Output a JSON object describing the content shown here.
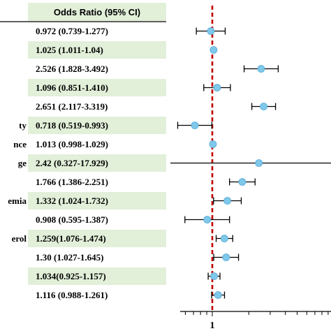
{
  "chart_data": {
    "type": "forest",
    "table_header": "Odds Ratio (95% CI)",
    "reference_line": 1,
    "x_tick_labels": [
      "1"
    ],
    "x_scale": "log",
    "row_colors": [
      "#ffffff",
      "#e2efd9"
    ],
    "marker_color": "#7ec8ea",
    "reference_line_color": "#c00000",
    "rows": [
      {
        "label": "",
        "or_text": "0.972 (0.739-1.277)",
        "or": 0.972,
        "lo": 0.739,
        "hi": 1.277
      },
      {
        "label": "",
        "or_text": "1.025 (1.011-1.04)",
        "or": 1.025,
        "lo": 1.011,
        "hi": 1.04
      },
      {
        "label": "",
        "or_text": "2.526 (1.828-3.492)",
        "or": 2.526,
        "lo": 1.828,
        "hi": 3.492
      },
      {
        "label": "",
        "or_text": "1.096 (0.851-1.410)",
        "or": 1.096,
        "lo": 0.851,
        "hi": 1.41
      },
      {
        "label": "",
        "or_text": "2.651 (2.117-3.319)",
        "or": 2.651,
        "lo": 2.117,
        "hi": 3.319
      },
      {
        "label": "ty",
        "or_text": "0.718 (0.519-0.993)",
        "or": 0.718,
        "lo": 0.519,
        "hi": 0.993
      },
      {
        "label": "nce",
        "or_text": "1.013 (0.998-1.029)",
        "or": 1.013,
        "lo": 0.998,
        "hi": 1.029
      },
      {
        "label": "ge",
        "or_text": "2.42 (0.327-17.929)",
        "or": 2.42,
        "lo": 0.327,
        "hi": 17.929
      },
      {
        "label": "",
        "or_text": "1.766 (1.386-2.251)",
        "or": 1.766,
        "lo": 1.386,
        "hi": 2.251
      },
      {
        "label": "emia",
        "or_text": "1.332 (1.024-1.732)",
        "or": 1.332,
        "lo": 1.024,
        "hi": 1.732
      },
      {
        "label": "",
        "or_text": "0.908 (0.595-1.387)",
        "or": 0.908,
        "lo": 0.595,
        "hi": 1.387
      },
      {
        "label": "erol",
        "or_text": "1.259(1.076-1.474)",
        "or": 1.259,
        "lo": 1.076,
        "hi": 1.474
      },
      {
        "label": "",
        "or_text": "1.30 (1.027-1.645)",
        "or": 1.3,
        "lo": 1.027,
        "hi": 1.645
      },
      {
        "label": "",
        "or_text": "1.034(0.925-1.157)",
        "or": 1.034,
        "lo": 0.925,
        "hi": 1.157
      },
      {
        "label": "",
        "or_text": "1.116 (0.988-1.261)",
        "or": 1.116,
        "lo": 0.988,
        "hi": 1.261
      }
    ]
  }
}
